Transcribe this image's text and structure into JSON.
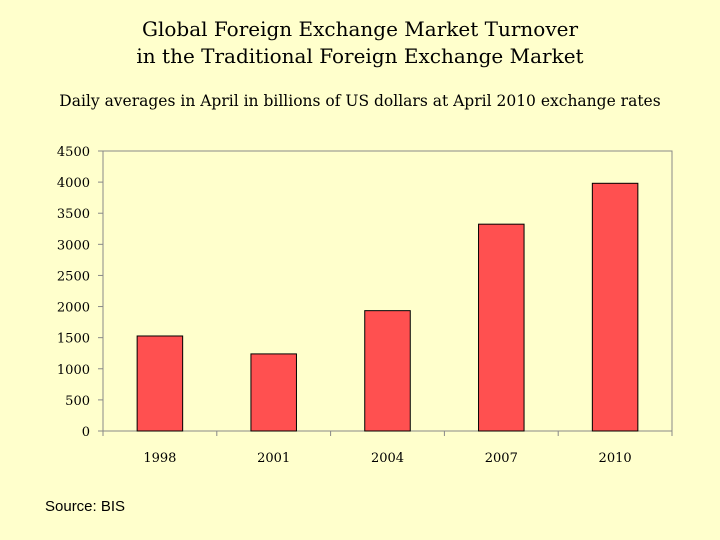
{
  "chart_data": {
    "type": "bar",
    "title_line1": "Global Foreign Exchange Market Turnover",
    "title_line2": "in the Traditional Foreign Exchange Market",
    "subtitle": "Daily averages in April in billions of US dollars at April 2010 exchange rates",
    "categories": [
      "1998",
      "2001",
      "2004",
      "2007",
      "2010"
    ],
    "values": [
      1527,
      1239,
      1934,
      3324,
      3981
    ],
    "yticks": [
      0,
      500,
      1000,
      1500,
      2000,
      2500,
      3000,
      3500,
      4000,
      4500
    ],
    "ylim": [
      0,
      4500
    ],
    "xlabel": "",
    "ylabel": "",
    "grid": false,
    "bar_color": "#ff5050",
    "source": "Source: BIS"
  }
}
